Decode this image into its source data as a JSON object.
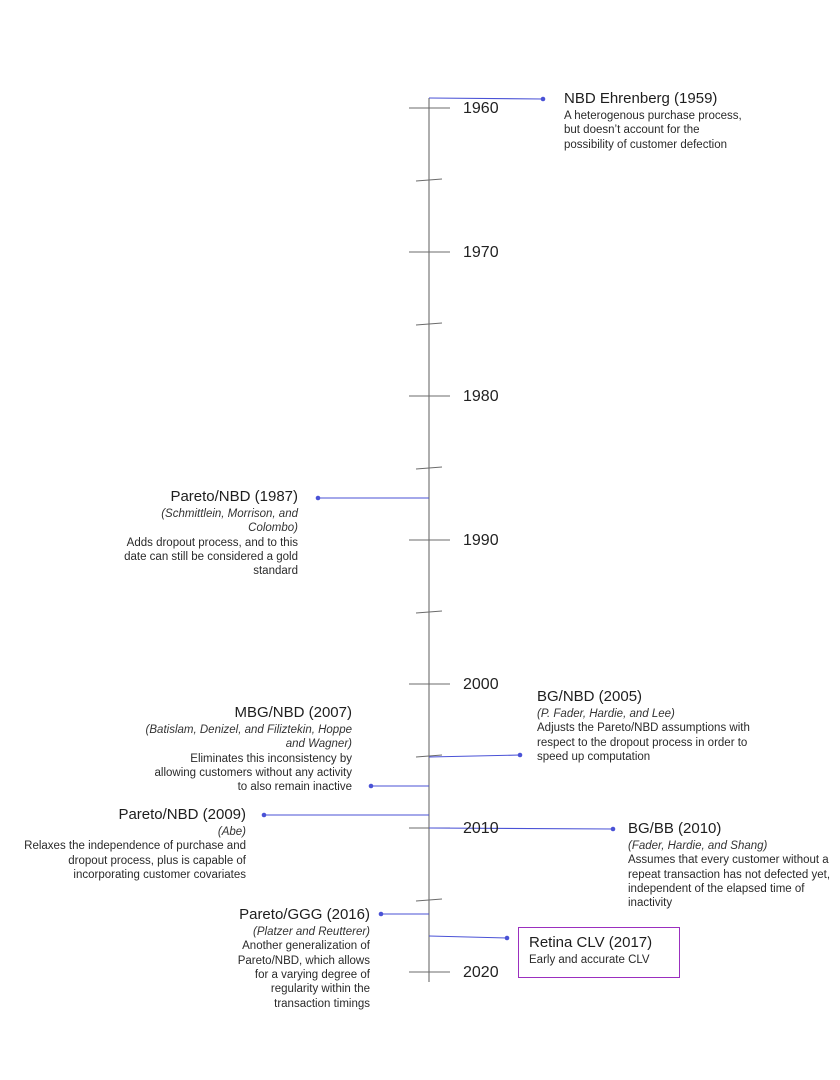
{
  "colors": {
    "axis": "#6b6b6b",
    "connector": "#4a52d6",
    "highlight_border": "#9b2fbf"
  },
  "years": [
    "1960",
    "1970",
    "1980",
    "1990",
    "2000",
    "2010",
    "2020"
  ],
  "events": [
    {
      "id": "nbd-ehrenberg",
      "title": "NBD Ehrenberg (1959)",
      "authors": "",
      "description": "A heterogenous purchase process, but doesn’t account for the possibility of customer defection"
    },
    {
      "id": "pareto-nbd-1987",
      "title": "Pareto/NBD (1987)",
      "authors": "(Schmittlein, Morrison, and Colombo)",
      "description": "Adds dropout process, and to this date can still be considered a gold standard"
    },
    {
      "id": "bg-nbd-2005",
      "title": "BG/NBD (2005)",
      "authors": "(P. Fader, Hardie, and Lee)",
      "description": "Adjusts the Pareto/NBD assumptions with respect to the dropout process in order to speed up computation"
    },
    {
      "id": "mbg-nbd-2007",
      "title": "MBG/NBD (2007)",
      "authors": "(Batislam, Denizel, and Filiztekin, Hoppe and Wagner)",
      "description": "Eliminates this inconsistency by allowing customers without any activity to also remain inactive"
    },
    {
      "id": "pareto-nbd-2009",
      "title": "Pareto/NBD (2009)",
      "authors": "(Abe)",
      "description": "Relaxes the independence of purchase and dropout process, plus is capable of incorporating customer covariates"
    },
    {
      "id": "bg-bb-2010",
      "title": "BG/BB (2010)",
      "authors": "(Fader, Hardie, and Shang)",
      "description": "Assumes that every customer without a repeat transaction has not defected yet, independent of the elapsed time of inactivity"
    },
    {
      "id": "pareto-ggg-2016",
      "title": "Pareto/GGG (2016)",
      "authors": "(Platzer and Reutterer)",
      "description": "Another generalization of Pareto/NBD, which allows for a varying degree of regularity within the transaction timings"
    },
    {
      "id": "retina-clv-2017",
      "title": "Retina CLV (2017)",
      "authors": "",
      "description": "Early and accurate CLV"
    }
  ]
}
